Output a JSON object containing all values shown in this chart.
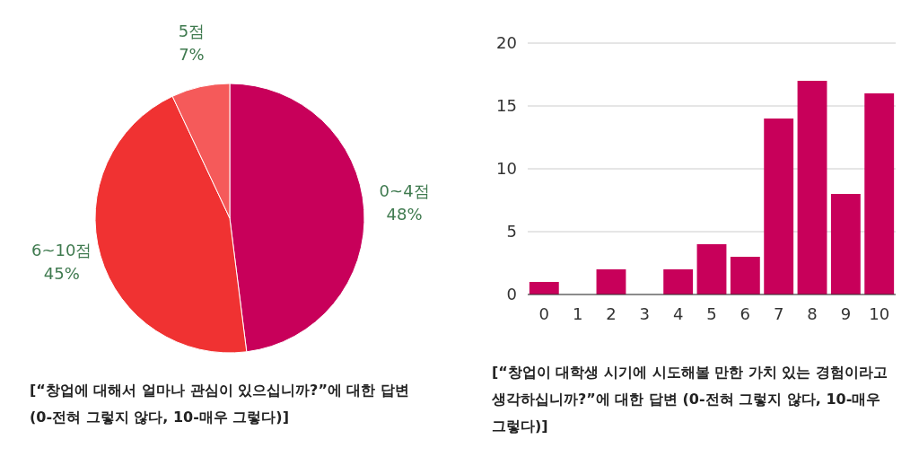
{
  "chart_data": [
    {
      "type": "pie",
      "categories": [
        "0~4점",
        "6~10점",
        "5점"
      ],
      "values": [
        48,
        45,
        7
      ],
      "colors": [
        "#c8005a",
        "#f03232",
        "#f55a5a"
      ],
      "value_labels": [
        "48%",
        "45%",
        "7%"
      ],
      "annotations": [
        "[“창업에 대해서 얼마나 관심이 있으십니까?”에 대한 답변 (0-전혀 그렇지 않다, 10-매우 그렇다)]"
      ]
    },
    {
      "type": "bar",
      "categories": [
        "0",
        "1",
        "2",
        "3",
        "4",
        "5",
        "6",
        "7",
        "8",
        "9",
        "10"
      ],
      "values": [
        1,
        0,
        2,
        0,
        2,
        4,
        3,
        14,
        17,
        8,
        16
      ],
      "color": "#c8005a",
      "ylim": [
        0,
        20
      ],
      "yticks": [
        0,
        5,
        10,
        15,
        20
      ],
      "grid": "y",
      "annotations": [
        "[“창업이 대학생 시기에 시도해볼 만한 가치 있는 경험이라고 생각하십니까?”에 대한 답변 (0-전혀 그렇지 않다, 10-매우 그렇다)]"
      ]
    }
  ]
}
